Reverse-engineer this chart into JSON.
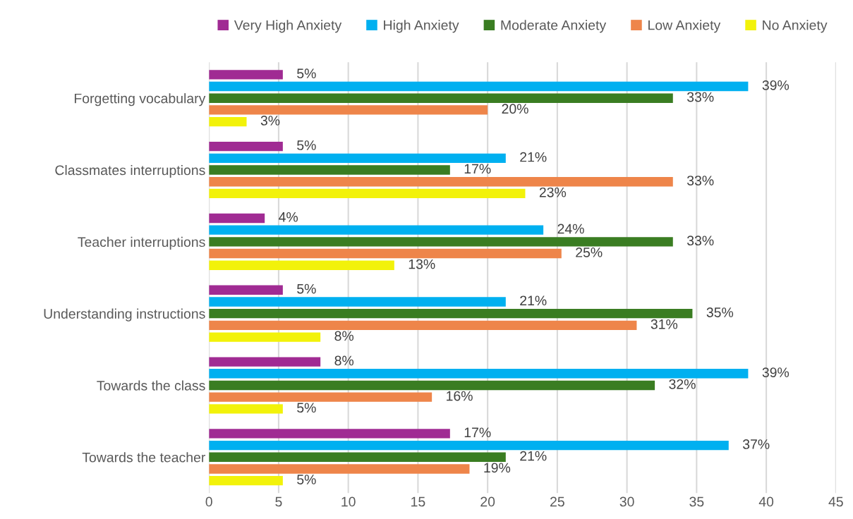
{
  "chart_data": {
    "type": "bar",
    "orientation": "horizontal",
    "categories": [
      "Forgetting vocabulary",
      "Classmates interruptions",
      "Teacher interruptions",
      "Understanding instructions",
      "Towards the class",
      "Towards the teacher"
    ],
    "series": [
      {
        "name": "Very High Anxiety",
        "color": "#a02b93",
        "values": [
          5.3,
          5.3,
          4.0,
          5.3,
          8.0,
          17.3
        ],
        "value_labels": [
          "5%",
          "5%",
          "4%",
          "5%",
          "8%",
          "17%"
        ]
      },
      {
        "name": "High Anxiety",
        "color": "#00b0f0",
        "values": [
          38.7,
          21.3,
          24.0,
          21.3,
          38.7,
          37.3
        ],
        "value_labels": [
          "39%",
          "21%",
          "24%",
          "21%",
          "39%",
          "37%"
        ]
      },
      {
        "name": "Moderate Anxiety",
        "color": "#3a7d22",
        "values": [
          33.3,
          17.3,
          33.3,
          34.7,
          32.0,
          21.3
        ],
        "value_labels": [
          "33%",
          "17%",
          "33%",
          "35%",
          "32%",
          "21%"
        ]
      },
      {
        "name": "Low Anxiety",
        "color": "#ee854a",
        "values": [
          20.0,
          33.3,
          25.3,
          30.7,
          16.0,
          18.7
        ],
        "value_labels": [
          "20%",
          "33%",
          "25%",
          "31%",
          "16%",
          "19%"
        ]
      },
      {
        "name": "No Anxiety",
        "color": "#f2f20a",
        "values": [
          2.7,
          22.7,
          13.3,
          8.0,
          5.3,
          5.3
        ],
        "value_labels": [
          "3%",
          "23%",
          "13%",
          "8%",
          "5%",
          "5%"
        ]
      }
    ],
    "xlim": [
      0,
      45
    ],
    "xticks": [
      0,
      5,
      10,
      15,
      20,
      25,
      30,
      35,
      40,
      45
    ],
    "grid": "x",
    "legend": "top"
  }
}
